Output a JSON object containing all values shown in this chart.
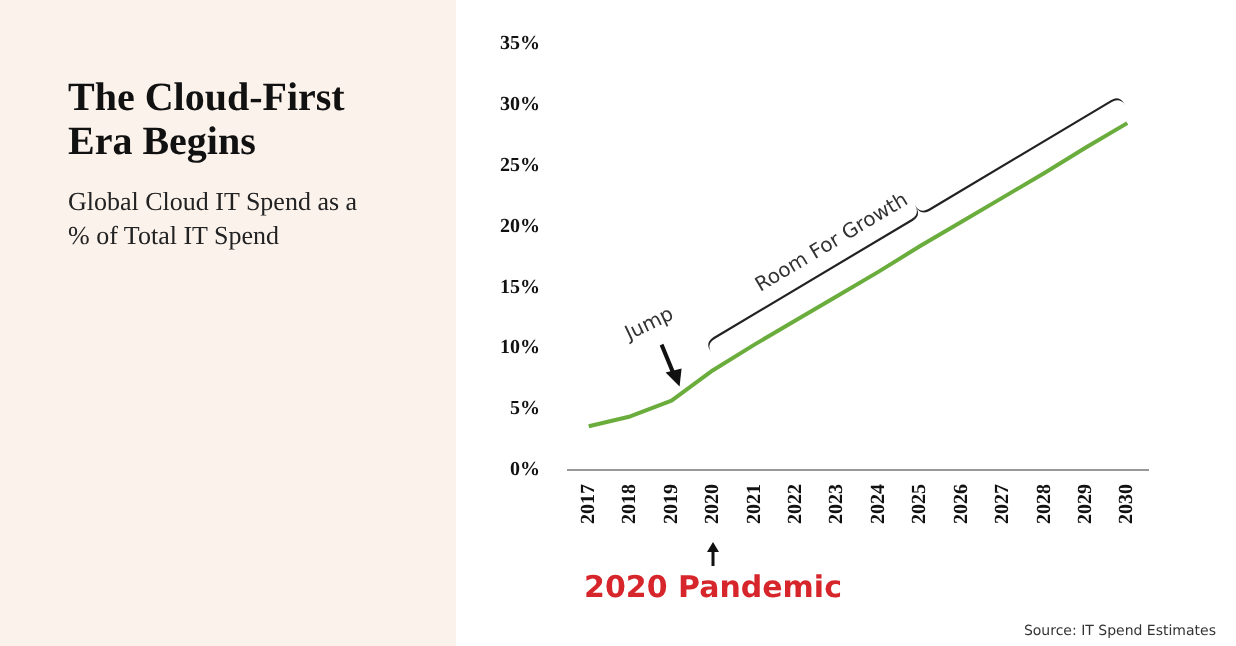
{
  "chart_data": {
    "type": "line",
    "title": "The Cloud-First Era Begins",
    "subtitle": "Global Cloud IT Spend as a % of Total IT Spend",
    "categories": [
      "2017",
      "2018",
      "2019",
      "2020",
      "2021",
      "2022",
      "2023",
      "2024",
      "2025",
      "2026",
      "2027",
      "2028",
      "2029",
      "2030"
    ],
    "series": [
      {
        "color": "#6aad3d",
        "values": [
          3.6,
          4.4,
          5.7,
          8.2,
          10.3,
          12.3,
          14.3,
          16.3,
          18.4,
          20.4,
          22.4,
          24.4,
          26.5,
          28.5
        ]
      }
    ],
    "ylim": [
      0,
      35
    ],
    "yticks": [
      {
        "value": 0,
        "label": "0%"
      },
      {
        "value": 5,
        "label": "5%"
      },
      {
        "value": 10,
        "label": "10%"
      },
      {
        "value": 15,
        "label": "15%"
      },
      {
        "value": 20,
        "label": "20%"
      },
      {
        "value": 25,
        "label": "25%"
      },
      {
        "value": 30,
        "label": "30%"
      },
      {
        "value": 35,
        "label": "35%"
      }
    ],
    "grid": false,
    "legend": false,
    "marker": "none",
    "line_style": "solid",
    "annotations": [
      {
        "text": "Jump",
        "x": "2019",
        "y": 5.7
      },
      {
        "text": "Room For Growth",
        "x": "2025",
        "y": 18.4
      },
      {
        "text": "2020 Pandemic",
        "x": "2020"
      },
      "Source: IT Spend Estimates"
    ]
  }
}
